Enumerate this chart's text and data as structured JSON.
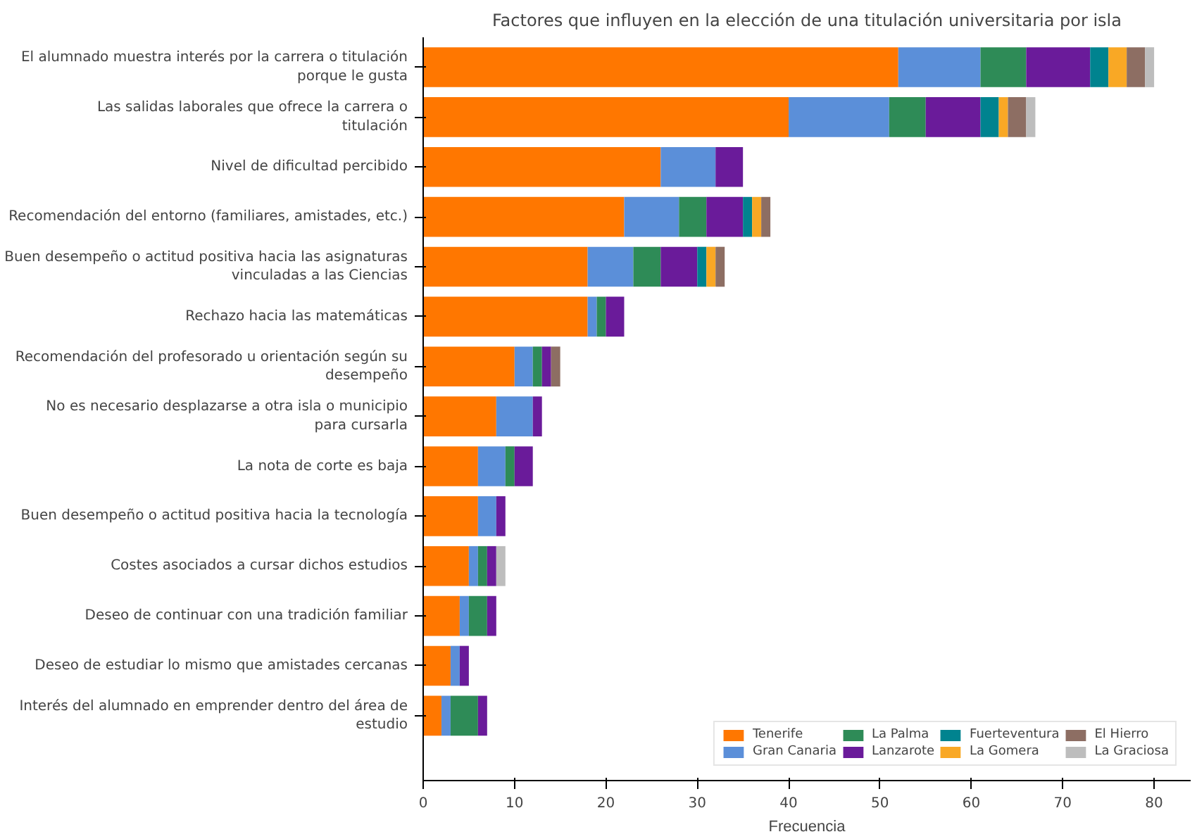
{
  "chart_data": {
    "type": "bar",
    "orientation": "horizontal",
    "stacked": true,
    "title": "Factores que influyen en la elección de una titulación universitaria por isla",
    "xlabel": "Frecuencia",
    "categories": [
      "El alumnado muestra interés por la carrera o titulación\nporque le gusta",
      "Las salidas laborales que ofrece la carrera o\ntitulación",
      "Nivel de dificultad percibido",
      "Recomendación del entorno (familiares, amistades, etc.)",
      "Buen desempeño o actitud positiva hacia las asignaturas\nvinculadas a las Ciencias",
      "Rechazo hacia las matemáticas",
      "Recomendación del profesorado u orientación según su\ndesempeño",
      "No es necesario desplazarse a otra isla o municipio\npara cursarla",
      "La nota de corte es baja",
      "Buen desempeño o actitud positiva hacia la tecnología",
      "Costes asociados a cursar dichos estudios",
      "Deseo de continuar con una tradición familiar",
      "Deseo de estudiar lo mismo que amistades cercanas",
      "Interés del alumnado en emprender dentro del área de\nestudio"
    ],
    "series": [
      {
        "name": "Tenerife",
        "color": "#ff7700",
        "values": [
          52,
          40,
          26,
          22,
          18,
          18,
          10,
          8,
          6,
          6,
          5,
          4,
          3,
          2
        ]
      },
      {
        "name": "Gran Canaria",
        "color": "#5b8fd9",
        "values": [
          9,
          11,
          6,
          6,
          5,
          1,
          2,
          4,
          3,
          2,
          1,
          1,
          1,
          1
        ]
      },
      {
        "name": "La Palma",
        "color": "#2e8b57",
        "values": [
          5,
          4,
          0,
          3,
          3,
          1,
          1,
          0,
          1,
          0,
          1,
          2,
          0,
          3
        ]
      },
      {
        "name": "Lanzarote",
        "color": "#6a1b9a",
        "values": [
          7,
          6,
          3,
          4,
          4,
          2,
          1,
          1,
          2,
          1,
          1,
          1,
          1,
          1
        ]
      },
      {
        "name": "Fuerteventura",
        "color": "#00838f",
        "values": [
          2,
          2,
          0,
          1,
          1,
          0,
          0,
          0,
          0,
          0,
          0,
          0,
          0,
          0
        ]
      },
      {
        "name": "La Gomera",
        "color": "#f9a825",
        "values": [
          2,
          1,
          0,
          1,
          1,
          0,
          0,
          0,
          0,
          0,
          0,
          0,
          0,
          0
        ]
      },
      {
        "name": "El Hierro",
        "color": "#8d6e63",
        "values": [
          2,
          2,
          0,
          1,
          1,
          0,
          1,
          0,
          0,
          0,
          0,
          0,
          0,
          0
        ]
      },
      {
        "name": "La Graciosa",
        "color": "#bdbdbd",
        "values": [
          1,
          1,
          0,
          0,
          0,
          0,
          0,
          0,
          0,
          0,
          1,
          0,
          0,
          0
        ]
      }
    ],
    "xlim": [
      0,
      84
    ],
    "xticks": [
      0,
      10,
      20,
      30,
      40,
      50,
      60,
      70,
      80
    ],
    "grid": false,
    "legend": "bottom right"
  }
}
